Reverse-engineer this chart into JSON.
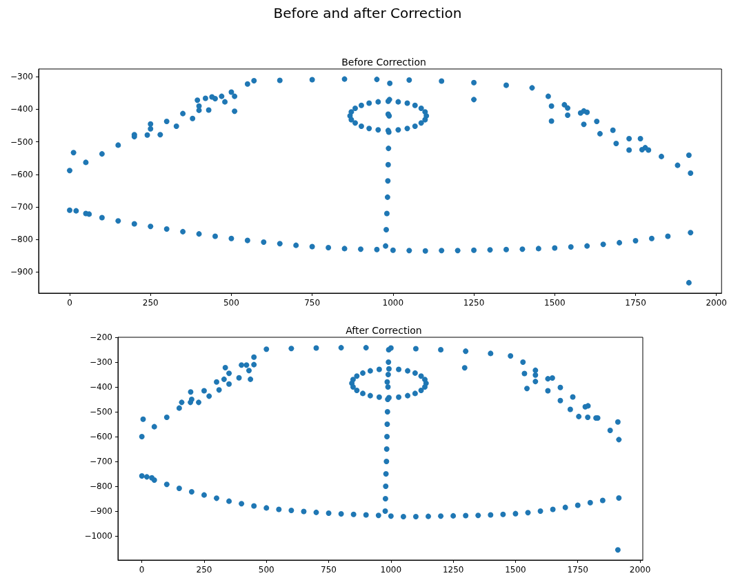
{
  "chart_data": [
    {
      "type": "scatter",
      "title": "Before and after Correction",
      "subtitle": "Before Correction",
      "marker": "circle",
      "grid": false,
      "xlim": [
        -96,
        2016
      ],
      "ylim": [
        -965,
        -276
      ],
      "xticks": [
        0,
        250,
        500,
        750,
        1000,
        1250,
        1500,
        1750,
        2000
      ],
      "yticks": [
        {
          "value": -900,
          "label": "−900"
        },
        {
          "value": -800,
          "label": "−800"
        },
        {
          "value": -700,
          "label": "−700"
        },
        {
          "value": -600,
          "label": "−600"
        },
        {
          "value": -500,
          "label": "−500"
        },
        {
          "value": -400,
          "label": "−400"
        },
        {
          "value": -300,
          "label": "−300"
        }
      ],
      "series": [
        {
          "color": "#1f77b4",
          "x": [
            0,
            50,
            100,
            150,
            200,
            250,
            300,
            350,
            400,
            450,
            500,
            550,
            570,
            650,
            750,
            850,
            950,
            1050,
            1150,
            1250,
            1350,
            1430,
            1480,
            1530,
            1580,
            1630,
            1680,
            1730,
            1780,
            1830,
            1880,
            1920,
            200,
            240,
            280,
            330,
            380,
            430,
            480,
            510,
            470,
            440,
            1490,
            1540,
            1590,
            1640,
            1690,
            1730,
            1770,
            1790,
            1540,
            1590,
            990,
            989,
            988,
            987,
            986,
            985,
            984,
            983,
            981,
            979,
            977,
            1103,
            1099,
            1087,
            1068,
            1044,
            1016,
            985,
            954,
            926,
            902,
            883,
            871,
            867,
            871,
            883,
            902,
            926,
            954,
            985,
            1016,
            1044,
            1068,
            1087,
            1099,
            0,
            50,
            100,
            150,
            200,
            250,
            300,
            350,
            400,
            450,
            500,
            550,
            600,
            650,
            700,
            750,
            800,
            850,
            900,
            950,
            1000,
            1050,
            1100,
            1150,
            1200,
            1250,
            1300,
            1350,
            1400,
            1450,
            1500,
            1550,
            1600,
            1650,
            1700,
            1750,
            1800,
            1850,
            1920,
            12,
            250,
            395,
            420,
            400,
            510,
            1250,
            1490,
            1600,
            1765,
            985,
            1915,
            1915,
            20,
            60
          ],
          "values": [
            -588,
            -563,
            -537,
            -510,
            -484,
            -460,
            -437,
            -413,
            -390,
            -367,
            -347,
            -322,
            -312,
            -311,
            -309,
            -307,
            -308,
            -310,
            -313,
            -318,
            -326,
            -334,
            -360,
            -386,
            -411,
            -437,
            -464,
            -490,
            -518,
            -545,
            -572,
            -596,
            -478,
            -479,
            -478,
            -452,
            -428,
            -402,
            -377,
            -360,
            -360,
            -362,
            -390,
            -418,
            -446,
            -475,
            -505,
            -525,
            -524,
            -525,
            -396,
            -405,
            -320,
            -370,
            -420,
            -470,
            -520,
            -570,
            -620,
            -670,
            -720,
            -770,
            -820,
            -420,
            -408,
            -397,
            -388,
            -381,
            -377,
            -375,
            -377,
            -381,
            -388,
            -397,
            -408,
            -420,
            -432,
            -442,
            -452,
            -459,
            -463,
            -465,
            -463,
            -459,
            -452,
            -442,
            -432,
            -710,
            -720,
            -733,
            -743,
            -752,
            -760,
            -768,
            -776,
            -783,
            -790,
            -797,
            -803,
            -808,
            -813,
            -818,
            -822,
            -825,
            -828,
            -830,
            -831,
            -833,
            -834,
            -835,
            -834,
            -834,
            -833,
            -832,
            -831,
            -830,
            -828,
            -826,
            -823,
            -820,
            -815,
            -810,
            -804,
            -797,
            -790,
            -779,
            -533,
            -445,
            -372,
            -366,
            -403,
            -406,
            -370,
            -436,
            -409,
            -490,
            -415,
            -541,
            -933,
            -712,
            -722
          ]
        }
      ]
    },
    {
      "type": "scatter",
      "title": "After Correction",
      "marker": "circle",
      "grid": false,
      "xlim": [
        -96,
        2011
      ],
      "ylim": [
        -1097,
        -200
      ],
      "xticks": [
        0,
        250,
        500,
        750,
        1000,
        1250,
        1500,
        1750,
        2000
      ],
      "yticks": [
        {
          "value": -1000,
          "label": "−1000"
        },
        {
          "value": -900,
          "label": "−900"
        },
        {
          "value": -800,
          "label": "−800"
        },
        {
          "value": -700,
          "label": "−700"
        },
        {
          "value": -600,
          "label": "−600"
        },
        {
          "value": -500,
          "label": "−500"
        },
        {
          "value": -400,
          "label": "−400"
        },
        {
          "value": -300,
          "label": "−300"
        },
        {
          "value": -200,
          "label": "−200"
        }
      ],
      "series": [
        {
          "color": "#1f77b4",
          "x": [
            0,
            50,
            100,
            150,
            200,
            250,
            300,
            350,
            400,
            450,
            500,
            600,
            700,
            800,
            900,
            1000,
            1100,
            1200,
            1300,
            1400,
            1480,
            1530,
            1580,
            1630,
            1680,
            1730,
            1780,
            1830,
            1880,
            1915,
            1536,
            1580,
            1630,
            1680,
            1720,
            1754,
            1790,
            1823,
            1580,
            160,
            195,
            228,
            270,
            310,
            350,
            390,
            430,
            450,
            420,
            1141,
            1136,
            1121,
            1097,
            1067,
            1031,
            992,
            953,
            917,
            887,
            863,
            848,
            843,
            848,
            863,
            887,
            917,
            953,
            992,
            1031,
            1067,
            1097,
            1121,
            1136,
            991,
            990,
            989,
            988,
            987,
            986,
            985,
            984,
            983,
            982,
            980,
            979,
            978,
            977,
            985,
            0,
            50,
            100,
            150,
            200,
            250,
            300,
            350,
            400,
            450,
            500,
            550,
            600,
            650,
            700,
            750,
            800,
            850,
            900,
            950,
            1000,
            1050,
            1100,
            1150,
            1200,
            1250,
            1300,
            1350,
            1400,
            1450,
            1500,
            1550,
            1600,
            1650,
            1700,
            1750,
            1800,
            1850,
            1915,
            20,
            40,
            1648,
            1791,
            1546,
            1296,
            1911,
            1911,
            5,
            196,
            335,
            330,
            436
          ],
          "values": [
            -600,
            -560,
            -522,
            -485,
            -450,
            -415,
            -380,
            -345,
            -312,
            -280,
            -248,
            -245,
            -243,
            -242,
            -242,
            -243,
            -246,
            -250,
            -256,
            -265,
            -275,
            -300,
            -333,
            -367,
            -402,
            -440,
            -480,
            -525,
            -575,
            -612,
            -346,
            -378,
            -415,
            -455,
            -490,
            -519,
            -522,
            -525,
            -352,
            -462,
            -462,
            -462,
            -437,
            -412,
            -388,
            -363,
            -334,
            -310,
            -312,
            -385,
            -370,
            -356,
            -344,
            -335,
            -329,
            -327,
            -329,
            -335,
            -344,
            -356,
            -370,
            -385,
            -400,
            -414,
            -426,
            -435,
            -441,
            -443,
            -441,
            -435,
            -426,
            -414,
            -400,
            -250,
            -300,
            -350,
            -400,
            -450,
            -500,
            -550,
            -600,
            -650,
            -700,
            -750,
            -800,
            -850,
            -900,
            -380,
            -758,
            -775,
            -792,
            -808,
            -822,
            -835,
            -848,
            -860,
            -870,
            -879,
            -887,
            -893,
            -897,
            -901,
            -905,
            -908,
            -911,
            -913,
            -915,
            -917,
            -920,
            -922,
            -922,
            -921,
            -920,
            -919,
            -918,
            -917,
            -915,
            -913,
            -910,
            -906,
            -900,
            -893,
            -885,
            -876,
            -866,
            -857,
            -847,
            -762,
            -766,
            -364,
            -476,
            -406,
            -323,
            -541,
            -1056,
            -530,
            -420,
            -322,
            -369,
            -369
          ]
        }
      ]
    }
  ]
}
